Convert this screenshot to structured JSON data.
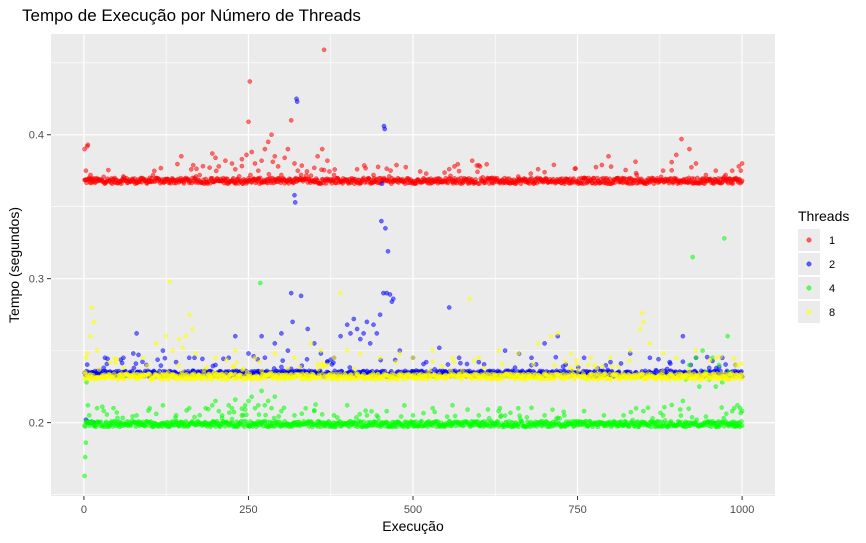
{
  "chart_data": {
    "type": "scatter",
    "title": "Tempo de Execução por Número de Threads",
    "xlabel": "Execução",
    "ylabel": "Tempo (segundos)",
    "xlim": [
      -50,
      1050
    ],
    "ylim": [
      0.149,
      0.47
    ],
    "x_ticks": [
      0,
      250,
      500,
      750,
      1000
    ],
    "x_tick_labels": [
      "0",
      "250",
      "500",
      "750",
      "1000"
    ],
    "y_ticks": [
      0.2,
      0.3,
      0.4
    ],
    "y_tick_labels": [
      "0.2",
      "0.3",
      "0.4"
    ],
    "grid": true,
    "legend": {
      "title": "Threads",
      "position": "right"
    },
    "series": [
      {
        "name": "1",
        "color": "#FF0000",
        "baseline": 0.368,
        "points": [
          [
            1,
            0.39
          ],
          [
            3,
            0.375
          ],
          [
            5,
            0.392
          ],
          [
            6,
            0.393
          ],
          [
            8,
            0.37
          ],
          [
            10,
            0.372
          ],
          [
            12,
            0.369
          ],
          [
            60,
            0.371
          ],
          [
            100,
            0.37
          ],
          [
            148,
            0.385
          ],
          [
            170,
            0.371
          ],
          [
            195,
            0.387
          ],
          [
            200,
            0.384
          ],
          [
            205,
            0.378
          ],
          [
            215,
            0.382
          ],
          [
            225,
            0.38
          ],
          [
            230,
            0.376
          ],
          [
            240,
            0.383
          ],
          [
            247,
            0.386
          ],
          [
            250,
            0.409
          ],
          [
            252,
            0.437
          ],
          [
            255,
            0.388
          ],
          [
            260,
            0.38
          ],
          [
            265,
            0.375
          ],
          [
            270,
            0.382
          ],
          [
            275,
            0.39
          ],
          [
            280,
            0.395
          ],
          [
            285,
            0.4
          ],
          [
            290,
            0.385
          ],
          [
            295,
            0.378
          ],
          [
            300,
            0.372
          ],
          [
            305,
            0.384
          ],
          [
            310,
            0.39
          ],
          [
            315,
            0.41
          ],
          [
            320,
            0.38
          ],
          [
            325,
            0.375
          ],
          [
            330,
            0.372
          ],
          [
            350,
            0.377
          ],
          [
            355,
            0.385
          ],
          [
            362,
            0.39
          ],
          [
            365,
            0.459
          ],
          [
            370,
            0.382
          ],
          [
            380,
            0.372
          ],
          [
            440,
            0.372
          ],
          [
            520,
            0.373
          ],
          [
            563,
            0.378
          ],
          [
            590,
            0.382
          ],
          [
            620,
            0.37
          ],
          [
            660,
            0.371
          ],
          [
            700,
            0.374
          ],
          [
            760,
            0.37
          ],
          [
            797,
            0.385
          ],
          [
            840,
            0.372
          ],
          [
            880,
            0.375
          ],
          [
            893,
            0.381
          ],
          [
            900,
            0.386
          ],
          [
            908,
            0.397
          ],
          [
            920,
            0.39
          ],
          [
            930,
            0.38
          ],
          [
            945,
            0.372
          ],
          [
            960,
            0.375
          ],
          [
            975,
            0.372
          ],
          [
            985,
            0.375
          ],
          [
            995,
            0.378
          ],
          [
            1000,
            0.38
          ]
        ]
      },
      {
        "name": "2",
        "color": "#0000FF",
        "baseline": 0.234,
        "points": [
          [
            3,
            0.202
          ],
          [
            5,
            0.201
          ],
          [
            7,
            0.2
          ],
          [
            9,
            0.2
          ],
          [
            12,
            0.2
          ],
          [
            15,
            0.2
          ],
          [
            30,
            0.238
          ],
          [
            60,
            0.245
          ],
          [
            75,
            0.248
          ],
          [
            80,
            0.262
          ],
          [
            95,
            0.24
          ],
          [
            120,
            0.25
          ],
          [
            140,
            0.242
          ],
          [
            160,
            0.245
          ],
          [
            200,
            0.24
          ],
          [
            220,
            0.245
          ],
          [
            230,
            0.26
          ],
          [
            250,
            0.248
          ],
          [
            270,
            0.26
          ],
          [
            290,
            0.255
          ],
          [
            300,
            0.262
          ],
          [
            310,
            0.25
          ],
          [
            315,
            0.29
          ],
          [
            317,
            0.27
          ],
          [
            320,
            0.358
          ],
          [
            321,
            0.353
          ],
          [
            323,
            0.425
          ],
          [
            324,
            0.423
          ],
          [
            330,
            0.288
          ],
          [
            340,
            0.265
          ],
          [
            350,
            0.255
          ],
          [
            360,
            0.248
          ],
          [
            370,
            0.242
          ],
          [
            380,
            0.245
          ],
          [
            390,
            0.26
          ],
          [
            400,
            0.268
          ],
          [
            405,
            0.262
          ],
          [
            410,
            0.272
          ],
          [
            415,
            0.265
          ],
          [
            420,
            0.258
          ],
          [
            425,
            0.262
          ],
          [
            430,
            0.27
          ],
          [
            435,
            0.255
          ],
          [
            440,
            0.268
          ],
          [
            445,
            0.262
          ],
          [
            450,
            0.275
          ],
          [
            452,
            0.34
          ],
          [
            453,
            0.366
          ],
          [
            455,
            0.29
          ],
          [
            456,
            0.406
          ],
          [
            457,
            0.404
          ],
          [
            458,
            0.335
          ],
          [
            460,
            0.29
          ],
          [
            462,
            0.319
          ],
          [
            465,
            0.289
          ],
          [
            468,
            0.284
          ],
          [
            470,
            0.286
          ],
          [
            480,
            0.25
          ],
          [
            500,
            0.245
          ],
          [
            520,
            0.242
          ],
          [
            540,
            0.252
          ],
          [
            555,
            0.28
          ],
          [
            570,
            0.245
          ],
          [
            600,
            0.242
          ],
          [
            640,
            0.25
          ],
          [
            680,
            0.245
          ],
          [
            700,
            0.255
          ],
          [
            720,
            0.26
          ],
          [
            760,
            0.245
          ],
          [
            800,
            0.242
          ],
          [
            830,
            0.248
          ],
          [
            860,
            0.245
          ],
          [
            890,
            0.242
          ],
          [
            910,
            0.26
          ],
          [
            930,
            0.245
          ],
          [
            950,
            0.238
          ],
          [
            970,
            0.245
          ],
          [
            990,
            0.24
          ]
        ]
      },
      {
        "name": "4",
        "color": "#00FF00",
        "baseline": 0.199,
        "points": [
          [
            1,
            0.163
          ],
          [
            2,
            0.176
          ],
          [
            3,
            0.186
          ],
          [
            4,
            0.228
          ],
          [
            6,
            0.212
          ],
          [
            8,
            0.205
          ],
          [
            20,
            0.21
          ],
          [
            50,
            0.207
          ],
          [
            80,
            0.205
          ],
          [
            100,
            0.21
          ],
          [
            120,
            0.212
          ],
          [
            140,
            0.205
          ],
          [
            160,
            0.21
          ],
          [
            185,
            0.21
          ],
          [
            195,
            0.212
          ],
          [
            200,
            0.215
          ],
          [
            205,
            0.208
          ],
          [
            210,
            0.205
          ],
          [
            220,
            0.212
          ],
          [
            225,
            0.21
          ],
          [
            230,
            0.216
          ],
          [
            240,
            0.205
          ],
          [
            245,
            0.212
          ],
          [
            250,
            0.215
          ],
          [
            255,
            0.218
          ],
          [
            260,
            0.21
          ],
          [
            265,
            0.212
          ],
          [
            268,
            0.297
          ],
          [
            270,
            0.222
          ],
          [
            275,
            0.212
          ],
          [
            280,
            0.215
          ],
          [
            285,
            0.21
          ],
          [
            290,
            0.218
          ],
          [
            300,
            0.208
          ],
          [
            320,
            0.205
          ],
          [
            350,
            0.208
          ],
          [
            380,
            0.205
          ],
          [
            400,
            0.212
          ],
          [
            430,
            0.205
          ],
          [
            460,
            0.208
          ],
          [
            500,
            0.205
          ],
          [
            530,
            0.21
          ],
          [
            560,
            0.212
          ],
          [
            600,
            0.205
          ],
          [
            630,
            0.208
          ],
          [
            660,
            0.21
          ],
          [
            700,
            0.205
          ],
          [
            730,
            0.205
          ],
          [
            760,
            0.208
          ],
          [
            790,
            0.205
          ],
          [
            820,
            0.205
          ],
          [
            850,
            0.208
          ],
          [
            880,
            0.205
          ],
          [
            905,
            0.2
          ],
          [
            910,
            0.215
          ],
          [
            915,
            0.23
          ],
          [
            920,
            0.24
          ],
          [
            925,
            0.315
          ],
          [
            930,
            0.245
          ],
          [
            935,
            0.225
          ],
          [
            940,
            0.25
          ],
          [
            945,
            0.235
          ],
          [
            950,
            0.23
          ],
          [
            955,
            0.245
          ],
          [
            960,
            0.225
          ],
          [
            965,
            0.24
          ],
          [
            970,
            0.228
          ],
          [
            973,
            0.328
          ],
          [
            978,
            0.26
          ],
          [
            980,
            0.235
          ],
          [
            985,
            0.208
          ],
          [
            988,
            0.21
          ],
          [
            990,
            0.2
          ],
          [
            993,
            0.212
          ],
          [
            997,
            0.21
          ],
          [
            1000,
            0.208
          ]
        ]
      },
      {
        "name": "8",
        "color": "#FFFF00",
        "baseline": 0.232,
        "points": [
          [
            1,
            0.235
          ],
          [
            3,
            0.245
          ],
          [
            5,
            0.248
          ],
          [
            10,
            0.26
          ],
          [
            12,
            0.28
          ],
          [
            15,
            0.27
          ],
          [
            20,
            0.25
          ],
          [
            40,
            0.242
          ],
          [
            60,
            0.238
          ],
          [
            90,
            0.245
          ],
          [
            110,
            0.255
          ],
          [
            125,
            0.26
          ],
          [
            130,
            0.298
          ],
          [
            135,
            0.25
          ],
          [
            145,
            0.258
          ],
          [
            150,
            0.252
          ],
          [
            155,
            0.26
          ],
          [
            160,
            0.275
          ],
          [
            165,
            0.265
          ],
          [
            170,
            0.248
          ],
          [
            200,
            0.245
          ],
          [
            230,
            0.25
          ],
          [
            260,
            0.245
          ],
          [
            290,
            0.248
          ],
          [
            320,
            0.245
          ],
          [
            345,
            0.255
          ],
          [
            360,
            0.25
          ],
          [
            380,
            0.245
          ],
          [
            390,
            0.29
          ],
          [
            400,
            0.25
          ],
          [
            420,
            0.248
          ],
          [
            450,
            0.245
          ],
          [
            480,
            0.248
          ],
          [
            500,
            0.245
          ],
          [
            530,
            0.25
          ],
          [
            560,
            0.245
          ],
          [
            586,
            0.286
          ],
          [
            600,
            0.245
          ],
          [
            630,
            0.25
          ],
          [
            660,
            0.248
          ],
          [
            690,
            0.255
          ],
          [
            710,
            0.26
          ],
          [
            720,
            0.262
          ],
          [
            740,
            0.248
          ],
          [
            770,
            0.245
          ],
          [
            800,
            0.245
          ],
          [
            830,
            0.25
          ],
          [
            845,
            0.265
          ],
          [
            848,
            0.276
          ],
          [
            850,
            0.27
          ],
          [
            860,
            0.255
          ],
          [
            880,
            0.248
          ],
          [
            900,
            0.245
          ],
          [
            930,
            0.25
          ],
          [
            960,
            0.245
          ],
          [
            990,
            0.24
          ],
          [
            1000,
            0.233
          ]
        ]
      }
    ]
  }
}
